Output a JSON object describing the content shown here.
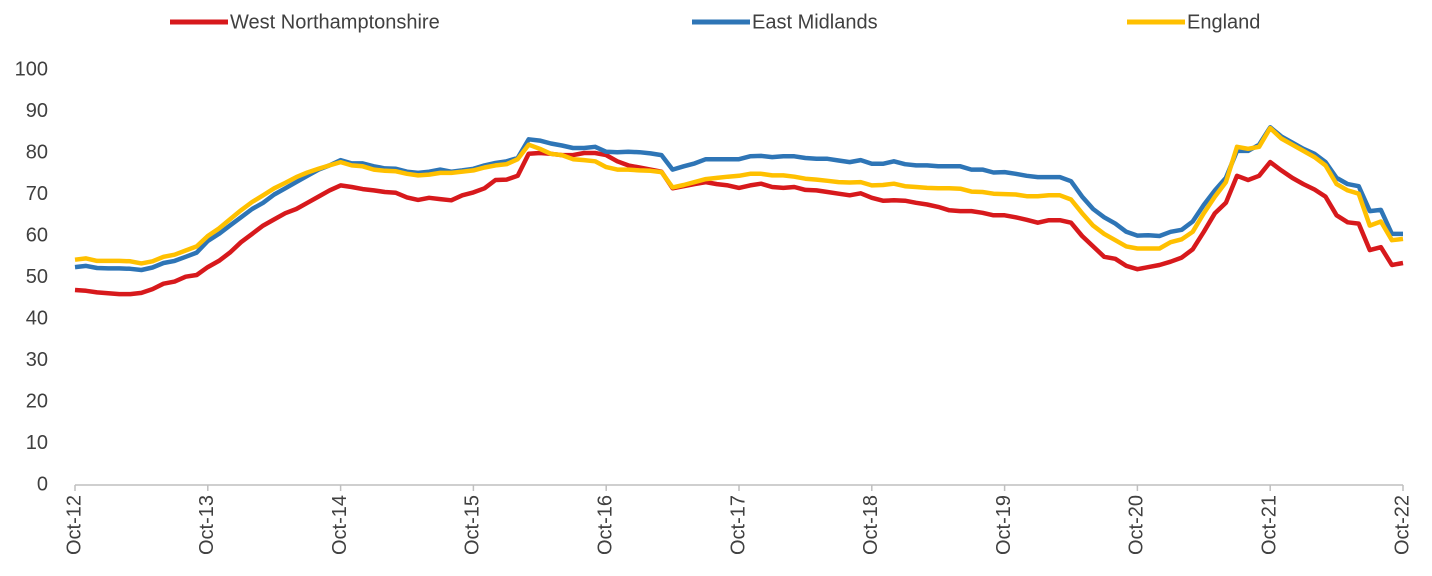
{
  "chart_data": {
    "type": "line",
    "categories": [
      "Oct-12",
      null,
      null,
      null,
      null,
      null,
      null,
      null,
      null,
      null,
      null,
      null,
      "Oct-13",
      null,
      null,
      null,
      null,
      null,
      null,
      null,
      null,
      null,
      null,
      null,
      "Oct-14",
      null,
      null,
      null,
      null,
      null,
      null,
      null,
      null,
      null,
      null,
      null,
      "Oct-15",
      null,
      null,
      null,
      null,
      null,
      null,
      null,
      null,
      null,
      null,
      null,
      "Oct-16",
      null,
      null,
      null,
      null,
      null,
      null,
      null,
      null,
      null,
      null,
      null,
      "Oct-17",
      null,
      null,
      null,
      null,
      null,
      null,
      null,
      null,
      null,
      null,
      null,
      "Oct-18",
      null,
      null,
      null,
      null,
      null,
      null,
      null,
      null,
      null,
      null,
      null,
      "Oct-19",
      null,
      null,
      null,
      null,
      null,
      null,
      null,
      null,
      null,
      null,
      null,
      "Oct-20",
      null,
      null,
      null,
      null,
      null,
      null,
      null,
      null,
      null,
      null,
      null,
      "Oct-21",
      null,
      null,
      null,
      null,
      null,
      null,
      null,
      null,
      null,
      null,
      null,
      "Oct-22"
    ],
    "series": [
      {
        "name": "West Northamptonshire",
        "color": "#d7191c",
        "values": [
          47,
          46.8,
          46.4,
          46.2,
          46,
          46,
          46.3,
          47.2,
          48.5,
          49,
          50.2,
          50.6,
          52.5,
          54,
          56,
          58.5,
          60.5,
          62.5,
          64,
          65.5,
          66.5,
          68,
          69.5,
          71,
          72.2,
          71.8,
          71.3,
          71,
          70.6,
          70.4,
          69.3,
          68.7,
          69.2,
          68.9,
          68.6,
          69.8,
          70.5,
          71.5,
          73.5,
          73.6,
          74.5,
          79.8,
          80,
          79.8,
          79.5,
          79.5,
          80,
          80,
          79.5,
          78,
          77,
          76.5,
          76,
          75.5,
          71.5,
          72,
          72.5,
          73,
          72.5,
          72.2,
          71.6,
          72.2,
          72.6,
          71.8,
          71.6,
          71.8,
          71.1,
          71,
          70.6,
          70.2,
          69.8,
          70.3,
          69.2,
          68.5,
          68.6,
          68.5,
          68,
          67.6,
          67,
          66.2,
          66,
          66,
          65.6,
          65,
          65,
          64.5,
          63.9,
          63.2,
          63.8,
          63.8,
          63.2,
          60,
          57.5,
          55,
          54.5,
          52.8,
          52,
          52.5,
          53,
          53.8,
          54.8,
          56.8,
          61,
          65.5,
          68,
          74.5,
          73.5,
          74.5,
          77.8,
          75.8,
          74,
          72.5,
          71.2,
          69.5,
          65,
          63.3,
          63,
          56.6,
          57.3,
          53,
          53.5
        ]
      },
      {
        "name": "East Midlands",
        "color": "#2e75b6",
        "values": [
          52.5,
          52.8,
          52.3,
          52.2,
          52.2,
          52.1,
          51.8,
          52.4,
          53.5,
          54,
          55,
          56,
          58.8,
          60.5,
          62.5,
          64.5,
          66.5,
          68,
          70,
          71.5,
          73,
          74.5,
          76,
          77,
          78.3,
          77.5,
          77.5,
          76.8,
          76.3,
          76.2,
          75.5,
          75.2,
          75.5,
          76,
          75.5,
          75.8,
          76.2,
          77,
          77.6,
          78,
          78.8,
          83.3,
          83,
          82.3,
          81.8,
          81.2,
          81.2,
          81.5,
          80.3,
          80.2,
          80.3,
          80.2,
          79.9,
          79.5,
          76,
          76.8,
          77.5,
          78.5,
          78.5,
          78.5,
          78.5,
          79.2,
          79.3,
          79,
          79.2,
          79.2,
          78.8,
          78.6,
          78.6,
          78.2,
          77.8,
          78.3,
          77.4,
          77.4,
          78,
          77.3,
          77,
          77,
          76.8,
          76.8,
          76.8,
          76,
          76,
          75.3,
          75.4,
          75,
          74.5,
          74.2,
          74.2,
          74.2,
          73.2,
          69.5,
          66.5,
          64.5,
          63,
          61,
          60.1,
          60.2,
          60,
          61,
          61.5,
          63.5,
          67.5,
          71,
          74,
          80.5,
          80.5,
          82,
          86.2,
          84,
          82.5,
          81,
          79.8,
          77.8,
          74,
          72.5,
          72,
          66,
          66.3,
          60.5,
          60.5
        ]
      },
      {
        "name": "England",
        "color": "#ffc000",
        "values": [
          54.3,
          54.6,
          54,
          54,
          54,
          53.9,
          53.4,
          53.9,
          55,
          55.5,
          56.5,
          57.5,
          60,
          61.8,
          64,
          66.2,
          68.2,
          69.8,
          71.5,
          72.8,
          74.2,
          75.3,
          76.2,
          77,
          77.8,
          77,
          76.8,
          76,
          75.7,
          75.6,
          75,
          74.6,
          74.8,
          75.2,
          75.2,
          75.5,
          75.8,
          76.5,
          77,
          77.3,
          78.5,
          82,
          81,
          79.8,
          79.5,
          78.5,
          78.3,
          78,
          76.6,
          76,
          76,
          75.8,
          75.7,
          75.4,
          71.7,
          72.3,
          73,
          73.7,
          74,
          74.3,
          74.5,
          75,
          75,
          74.6,
          74.6,
          74.3,
          73.8,
          73.6,
          73.3,
          73,
          72.9,
          73,
          72.2,
          72.3,
          72.6,
          72,
          71.8,
          71.6,
          71.5,
          71.5,
          71.4,
          70.7,
          70.6,
          70.2,
          70.1,
          70,
          69.6,
          69.6,
          69.8,
          69.8,
          68.8,
          65.5,
          62.5,
          60.5,
          59,
          57.5,
          57,
          57,
          57,
          58.5,
          59.2,
          61,
          65.5,
          69.5,
          73,
          81.5,
          81,
          81.5,
          86,
          83.5,
          82,
          80.5,
          79,
          77,
          72.5,
          71,
          70.2,
          62.5,
          63.5,
          59,
          59.3
        ]
      }
    ],
    "ylim": [
      0,
      100
    ],
    "yticks": [
      0,
      10,
      20,
      30,
      40,
      50,
      60,
      70,
      80,
      90,
      100
    ],
    "grid": false,
    "legend": "top"
  }
}
